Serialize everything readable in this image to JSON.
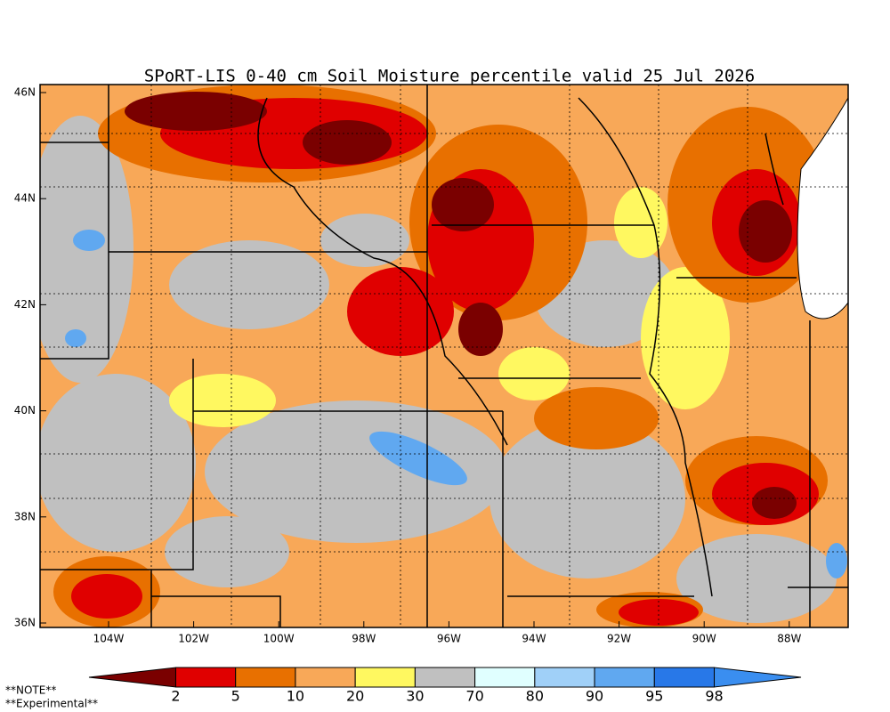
{
  "title": "SPoRT-LIS 0-40 cm Soil Moisture percentile valid 25 Jul 2026",
  "lat_labels": [
    "46N",
    "44N",
    "42N",
    "40N",
    "38N",
    "36N"
  ],
  "lon_labels": [
    "104W",
    "102W",
    "100W",
    "98W",
    "96W",
    "94W",
    "92W",
    "90W",
    "88W"
  ],
  "colorbar": {
    "labels": [
      2,
      5,
      10,
      20,
      30,
      70,
      80,
      90,
      95,
      98
    ],
    "colors": [
      "#7a0000",
      "#e00000",
      "#e87000",
      "#f8a858",
      "#fff860",
      "#c0c0c0",
      "#e0ffff",
      "#a0d0f8",
      "#60a8f0",
      "#2878e8",
      "#3a8ef0"
    ]
  },
  "notes": [
    "**NOTE**",
    "**Experimental**"
  ]
}
